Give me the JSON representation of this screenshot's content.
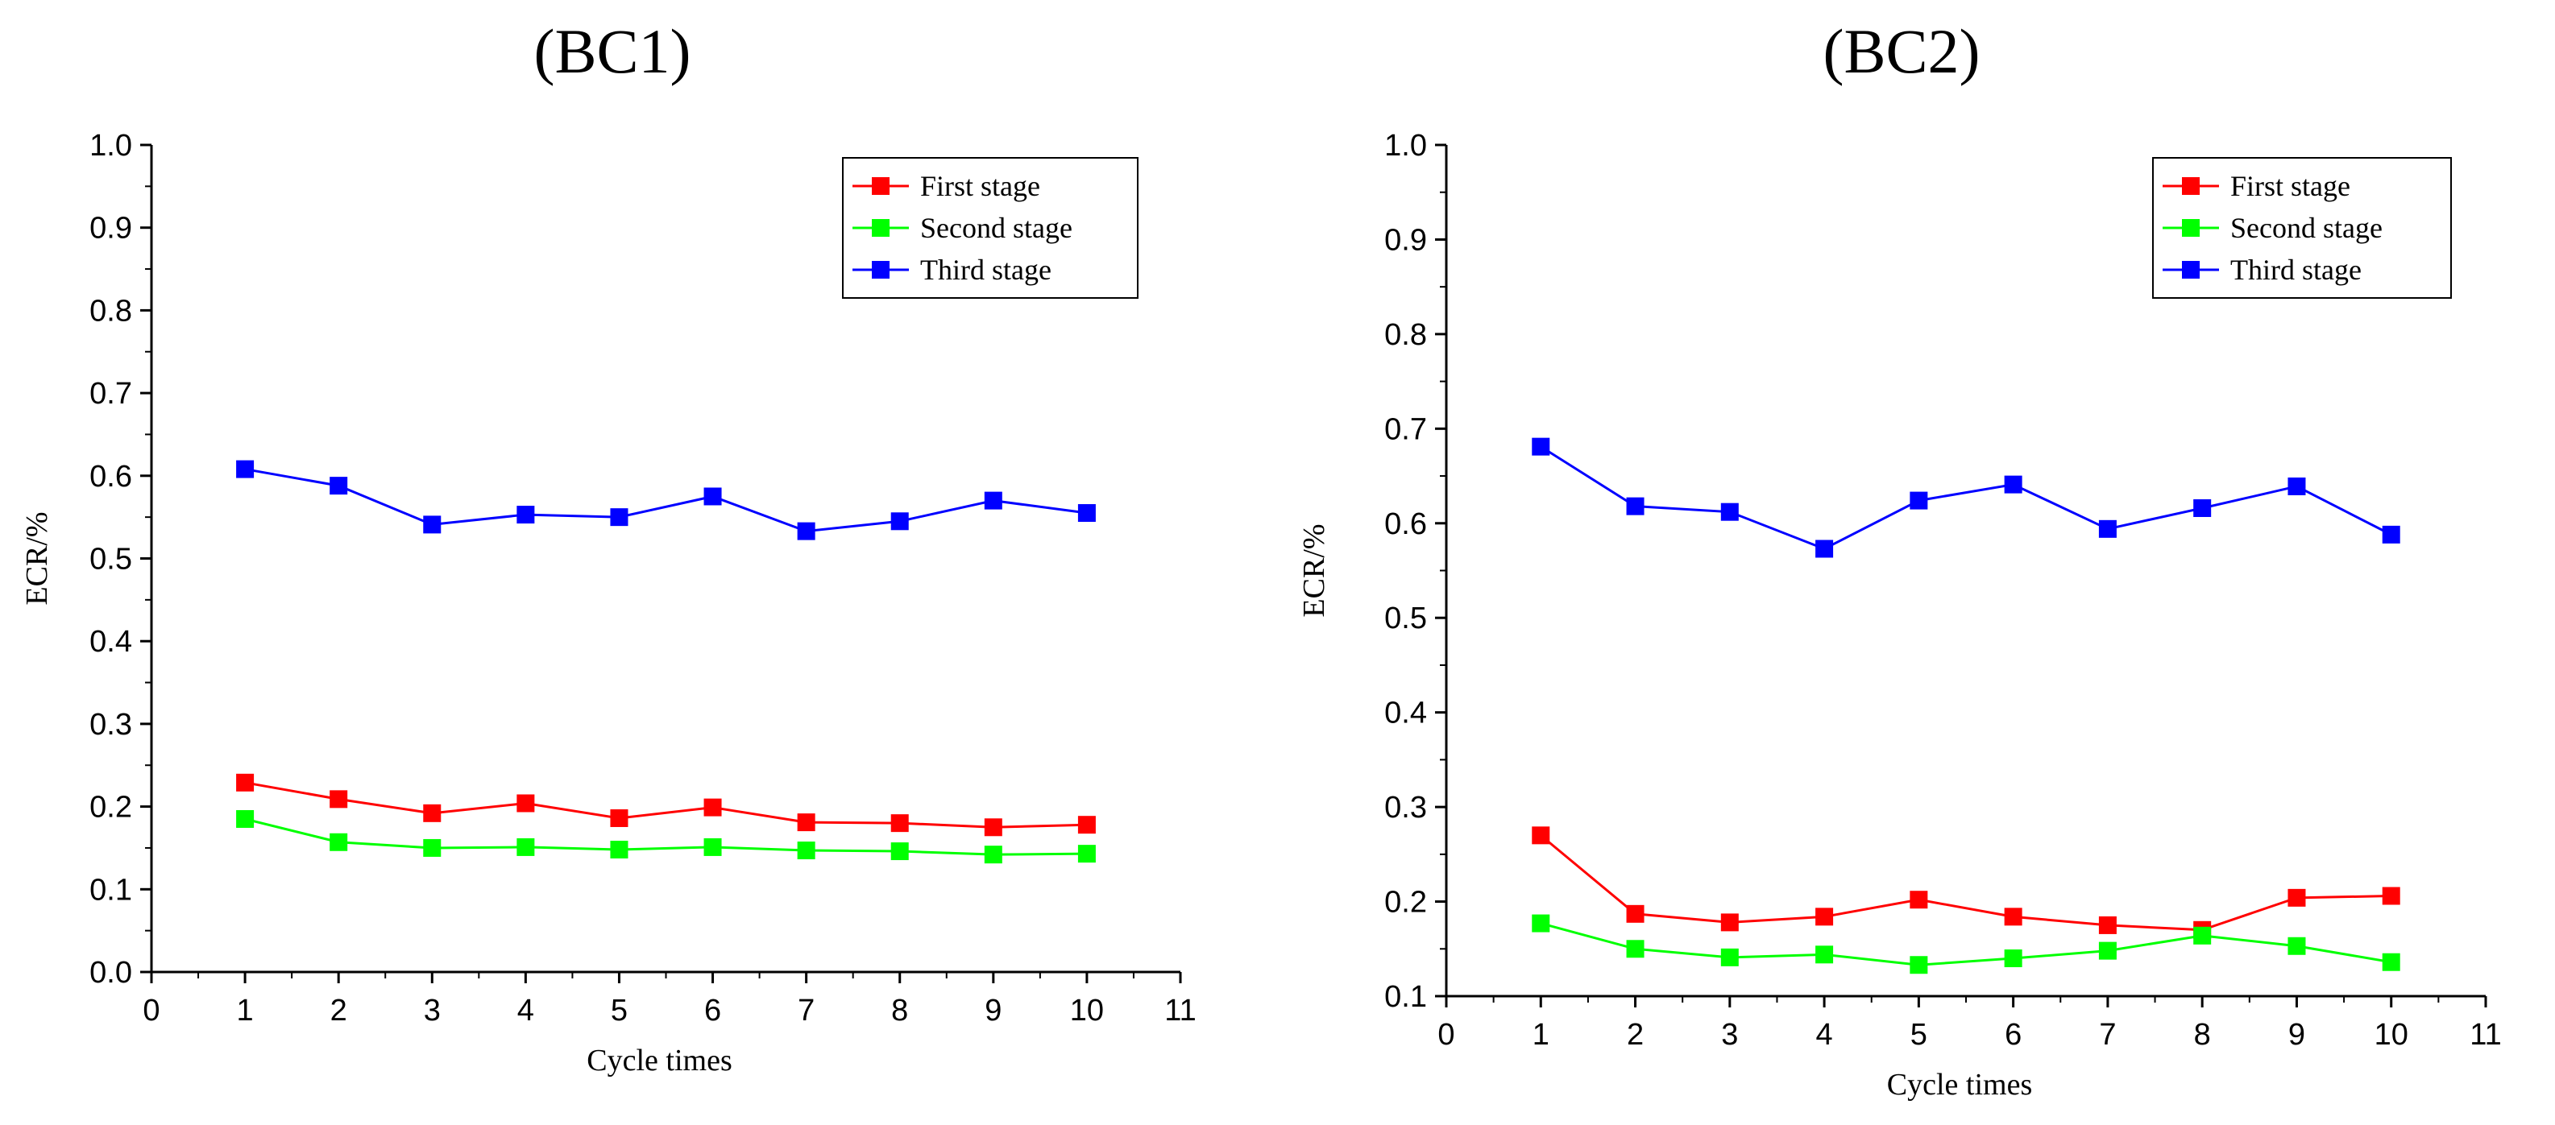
{
  "chart_data": [
    {
      "type": "line",
      "title": "(BC1)",
      "xlabel": "Cycle times",
      "ylabel": "ECR/%",
      "xlim": [
        0,
        11
      ],
      "ylim": [
        0.0,
        1.0
      ],
      "x_ticks": [
        "0",
        "1",
        "2",
        "3",
        "4",
        "5",
        "6",
        "7",
        "8",
        "9",
        "10",
        "11"
      ],
      "y_ticks": [
        "0.0",
        "0.1",
        "0.2",
        "0.3",
        "0.4",
        "0.5",
        "0.6",
        "0.7",
        "0.8",
        "0.9",
        "1.0"
      ],
      "x": [
        1,
        2,
        3,
        4,
        5,
        6,
        7,
        8,
        9,
        10
      ],
      "legend_position": "top-right",
      "grid": false,
      "series": [
        {
          "name": "First stage",
          "color": "#ff0000",
          "values": [
            0.229,
            0.209,
            0.192,
            0.204,
            0.186,
            0.199,
            0.181,
            0.18,
            0.175,
            0.178
          ]
        },
        {
          "name": "Second stage",
          "color": "#00ff00",
          "values": [
            0.185,
            0.157,
            0.15,
            0.151,
            0.148,
            0.151,
            0.147,
            0.146,
            0.142,
            0.143
          ]
        },
        {
          "name": "Third stage",
          "color": "#0000ff",
          "values": [
            0.608,
            0.588,
            0.541,
            0.553,
            0.55,
            0.575,
            0.533,
            0.545,
            0.57,
            0.555
          ]
        }
      ]
    },
    {
      "type": "line",
      "title": "(BC2)",
      "xlabel": "Cycle times",
      "ylabel": "ECR/%",
      "xlim": [
        0,
        11
      ],
      "ylim": [
        0.1,
        1.0
      ],
      "x_ticks": [
        "0",
        "1",
        "2",
        "3",
        "4",
        "5",
        "6",
        "7",
        "8",
        "9",
        "10",
        "11"
      ],
      "y_ticks": [
        "0.1",
        "0.2",
        "0.3",
        "0.4",
        "0.5",
        "0.6",
        "0.7",
        "0.8",
        "0.9",
        "1.0"
      ],
      "x": [
        1,
        2,
        3,
        4,
        5,
        6,
        7,
        8,
        9,
        10
      ],
      "legend_position": "top-right",
      "grid": false,
      "series": [
        {
          "name": "First stage",
          "color": "#ff0000",
          "values": [
            0.27,
            0.187,
            0.178,
            0.184,
            0.202,
            0.184,
            0.175,
            0.17,
            0.204,
            0.206
          ]
        },
        {
          "name": "Second stage",
          "color": "#00ff00",
          "values": [
            0.177,
            0.15,
            0.141,
            0.144,
            0.133,
            0.14,
            0.148,
            0.164,
            0.153,
            0.136
          ]
        },
        {
          "name": "Third stage",
          "color": "#0000ff",
          "values": [
            0.681,
            0.618,
            0.612,
            0.573,
            0.624,
            0.641,
            0.594,
            0.616,
            0.639,
            0.588
          ]
        }
      ]
    }
  ]
}
